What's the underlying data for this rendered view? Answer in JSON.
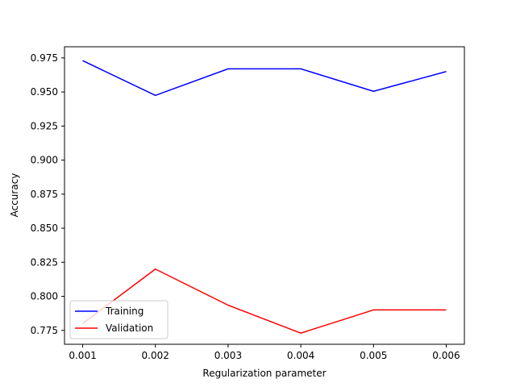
{
  "chart_data": {
    "type": "line",
    "title": "",
    "xlabel": "Regularization parameter",
    "ylabel": "Accuracy",
    "x": [
      0.001,
      0.002,
      0.003,
      0.004,
      0.005,
      0.006
    ],
    "x_tick_labels": [
      "0.001",
      "0.002",
      "0.003",
      "0.004",
      "0.005",
      "0.006"
    ],
    "y_tick_values": [
      0.775,
      0.8,
      0.825,
      0.85,
      0.875,
      0.9,
      0.925,
      0.95,
      0.975
    ],
    "y_tick_labels": [
      "0.775",
      "0.800",
      "0.825",
      "0.850",
      "0.875",
      "0.900",
      "0.925",
      "0.950",
      "0.975"
    ],
    "xlim": [
      0.00075,
      0.00625
    ],
    "ylim": [
      0.7648,
      0.9832
    ],
    "grid": false,
    "legend_position": "lower left",
    "series": [
      {
        "name": "Training",
        "color": "#0000ff",
        "values": [
          0.973,
          0.9475,
          0.967,
          0.967,
          0.9505,
          0.965
        ]
      },
      {
        "name": "Validation",
        "color": "#ff0000",
        "values": [
          0.78,
          0.82,
          0.7935,
          0.773,
          0.79,
          0.79
        ]
      }
    ]
  }
}
